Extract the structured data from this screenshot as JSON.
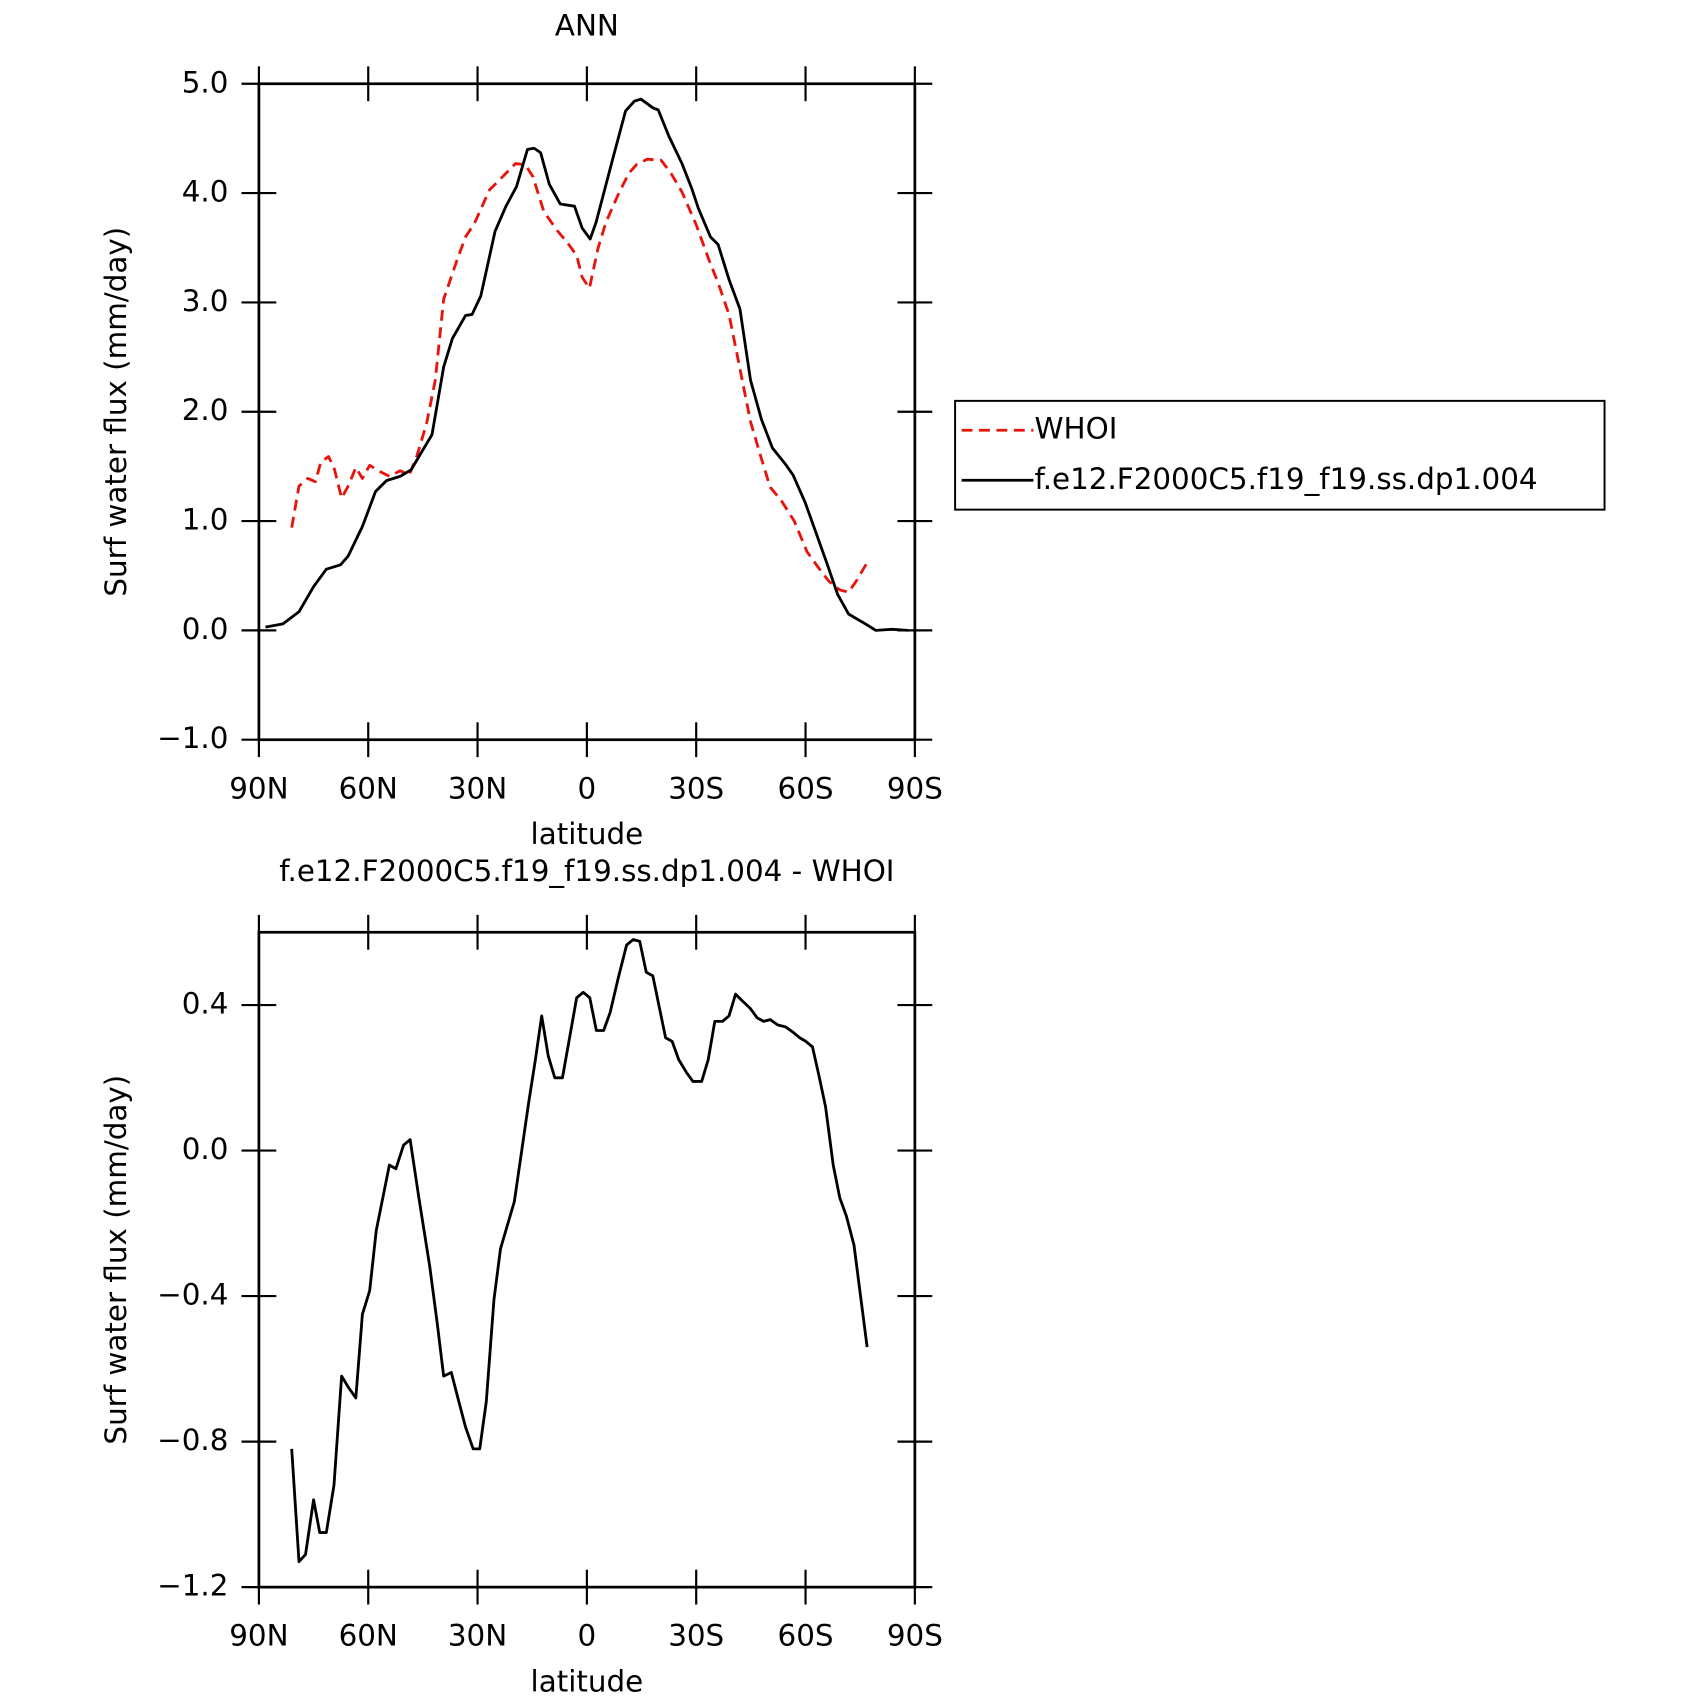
{
  "chart_data": [
    {
      "type": "line",
      "title": "ANN",
      "xlabel": "latitude",
      "ylabel": "Surf water flux (mm/day)",
      "xlim": [
        90,
        -90
      ],
      "ylim": [
        -1,
        5
      ],
      "xticks": [
        {
          "value": 90,
          "label": "90N"
        },
        {
          "value": 60,
          "label": "60N"
        },
        {
          "value": 30,
          "label": "30N"
        },
        0,
        {
          "value": -30,
          "label": "30S"
        },
        {
          "value": -60,
          "label": "60S"
        },
        {
          "value": -90,
          "label": "90S"
        }
      ],
      "yticks": [
        {
          "value": -1,
          "label": "−1.0"
        },
        {
          "value": 0,
          "label": "0.0"
        },
        {
          "value": 1,
          "label": "1.0"
        },
        {
          "value": 2,
          "label": "2.0"
        },
        {
          "value": 3,
          "label": "3.0"
        },
        {
          "value": 4,
          "label": "4.0"
        },
        {
          "value": 5,
          "label": "5.0"
        }
      ],
      "legend": "right",
      "series": [
        {
          "name": "WHOI",
          "color": "#e8140c",
          "linestyle": "dashed",
          "x": [
            81,
            79,
            76.6,
            74.5,
            73,
            70.9,
            69.4,
            67.3,
            65.5,
            63.4,
            61.6,
            59.6,
            57.2,
            54.2,
            51.2,
            48.8,
            46.7,
            44,
            41.6,
            39.3,
            35.7,
            33.3,
            30.9,
            26.7,
            23.7,
            19.6,
            16.9,
            14.8,
            11.8,
            8.2,
            5.2,
            2.8,
            1.3,
            -0.7,
            -3.1,
            -5.2,
            -8.5,
            -11.5,
            -13.6,
            -16.6,
            -20.4,
            -23.1,
            -26.1,
            -30,
            -33.6,
            -36,
            -39,
            -41.9,
            -44.9,
            -47.9,
            -50.3,
            -53.3,
            -56.9,
            -60.4,
            -63.4,
            -66.4,
            -69.4,
            -71.8,
            -73.9,
            -76.9
          ],
          "values": [
            0.94,
            1.32,
            1.39,
            1.36,
            1.54,
            1.59,
            1.49,
            1.21,
            1.32,
            1.49,
            1.39,
            1.51,
            1.46,
            1.41,
            1.46,
            1.42,
            1.59,
            1.89,
            2.29,
            3.03,
            3.38,
            3.6,
            3.72,
            4.03,
            4.13,
            4.27,
            4.26,
            4.15,
            3.83,
            3.66,
            3.54,
            3.43,
            3.23,
            3.13,
            3.5,
            3.73,
            3.98,
            4.18,
            4.26,
            4.31,
            4.3,
            4.18,
            4.01,
            3.71,
            3.38,
            3.18,
            2.89,
            2.41,
            1.91,
            1.57,
            1.31,
            1.19,
            1.0,
            0.72,
            0.58,
            0.45,
            0.37,
            0.35,
            0.45,
            0.62
          ]
        },
        {
          "name": "f.e12.F2000C5.f19_f19.ss.dp1.004",
          "color": "#000000",
          "linestyle": "solid",
          "x": [
            88.2,
            83.4,
            79,
            75,
            71.5,
            67.6,
            65.5,
            61.6,
            58,
            55,
            51.2,
            48.2,
            45.2,
            42.5,
            39.3,
            36.9,
            33.3,
            31.5,
            29.1,
            25.2,
            22.2,
            19.3,
            16.3,
            14.5,
            12.7,
            10.3,
            7.3,
            3.4,
            1.3,
            -0.9,
            -2.5,
            -7,
            -10.6,
            -13,
            -14.8,
            -18.1,
            -19.6,
            -22.5,
            -26.1,
            -28.8,
            -30.6,
            -33.9,
            -36,
            -39,
            -42,
            -44.9,
            -47.9,
            -50.9,
            -54.5,
            -56.6,
            -59.9,
            -62.8,
            -65.8,
            -68.8,
            -71.8,
            -76.9,
            -79.3,
            -83.7,
            -88.2
          ],
          "values": [
            0.03,
            0.06,
            0.17,
            0.4,
            0.56,
            0.6,
            0.68,
            0.95,
            1.27,
            1.37,
            1.41,
            1.47,
            1.64,
            1.79,
            2.41,
            2.67,
            2.88,
            2.89,
            3.06,
            3.65,
            3.88,
            4.06,
            4.4,
            4.41,
            4.37,
            4.08,
            3.9,
            3.88,
            3.68,
            3.58,
            3.73,
            4.3,
            4.75,
            4.84,
            4.86,
            4.78,
            4.76,
            4.52,
            4.27,
            4.04,
            3.86,
            3.6,
            3.53,
            3.21,
            2.94,
            2.29,
            1.93,
            1.67,
            1.52,
            1.42,
            1.17,
            0.9,
            0.62,
            0.33,
            0.15,
            0.05,
            0.0,
            0.01,
            0.0
          ]
        }
      ]
    },
    {
      "type": "line",
      "title": "f.e12.F2000C5.f19_f19.ss.dp1.004 - WHOI",
      "xlabel": "latitude",
      "ylabel": "Surf water flux (mm/day)",
      "xlim": [
        90,
        -90
      ],
      "ylim": [
        -1.2,
        0.6
      ],
      "xticks": [
        {
          "value": 90,
          "label": "90N"
        },
        {
          "value": 60,
          "label": "60N"
        },
        {
          "value": 30,
          "label": "30N"
        },
        0,
        {
          "value": -30,
          "label": "30S"
        },
        {
          "value": -60,
          "label": "60S"
        },
        {
          "value": -90,
          "label": "90S"
        }
      ],
      "yticks": [
        {
          "value": -1.2,
          "label": "−1.2"
        },
        {
          "value": -0.8,
          "label": "−0.8"
        },
        {
          "value": -0.4,
          "label": "−0.4"
        },
        {
          "value": 0,
          "label": "0.0"
        },
        0.4
      ],
      "series": [
        {
          "color": "#000000",
          "linestyle": "solid",
          "x": [
            81,
            79,
            77.2,
            75,
            73.3,
            71.5,
            69.4,
            67.3,
            65.5,
            63.4,
            61.6,
            59.6,
            57.8,
            56,
            54.2,
            52.4,
            50.3,
            48.5,
            46.1,
            43.1,
            41,
            39.3,
            37.2,
            35.4,
            33.3,
            31.2,
            29.4,
            27.6,
            25.5,
            23.7,
            19.9,
            16,
            14.2,
            12.4,
            10.6,
            8.8,
            6.7,
            2.8,
            1,
            -0.8,
            -2.6,
            -4.6,
            -6.4,
            -8.5,
            -10.9,
            -12.7,
            -14.5,
            -16.3,
            -18.1,
            -21.6,
            -23.4,
            -25.2,
            -27.3,
            -29.1,
            -31.5,
            -33.3,
            -35.1,
            -37.2,
            -39,
            -40.8,
            -42.8,
            -44.9,
            -46.7,
            -48.5,
            -50.3,
            -52.4,
            -54.5,
            -56.6,
            -58.4,
            -60.1,
            -61.9,
            -63.7,
            -65.5,
            -67.6,
            -69.4,
            -71.2,
            -73.3,
            -75.1,
            -76.9
          ],
          "values": [
            -0.82,
            -1.13,
            -1.11,
            -0.96,
            -1.05,
            -1.05,
            -0.92,
            -0.62,
            -0.65,
            -0.68,
            -0.45,
            -0.385,
            -0.22,
            -0.13,
            -0.04,
            -0.05,
            0.015,
            0.03,
            -0.13,
            -0.32,
            -0.48,
            -0.62,
            -0.61,
            -0.68,
            -0.76,
            -0.82,
            -0.82,
            -0.69,
            -0.41,
            -0.27,
            -0.14,
            0.13,
            0.245,
            0.37,
            0.26,
            0.2,
            0.2,
            0.42,
            0.435,
            0.42,
            0.33,
            0.33,
            0.38,
            0.47,
            0.565,
            0.58,
            0.575,
            0.49,
            0.48,
            0.31,
            0.3,
            0.25,
            0.215,
            0.19,
            0.19,
            0.25,
            0.355,
            0.355,
            0.37,
            0.43,
            0.41,
            0.39,
            0.365,
            0.355,
            0.36,
            0.345,
            0.34,
            0.325,
            0.31,
            0.3,
            0.285,
            0.205,
            0.12,
            -0.04,
            -0.13,
            -0.18,
            -0.26,
            -0.4,
            -0.54
          ]
        }
      ]
    }
  ]
}
